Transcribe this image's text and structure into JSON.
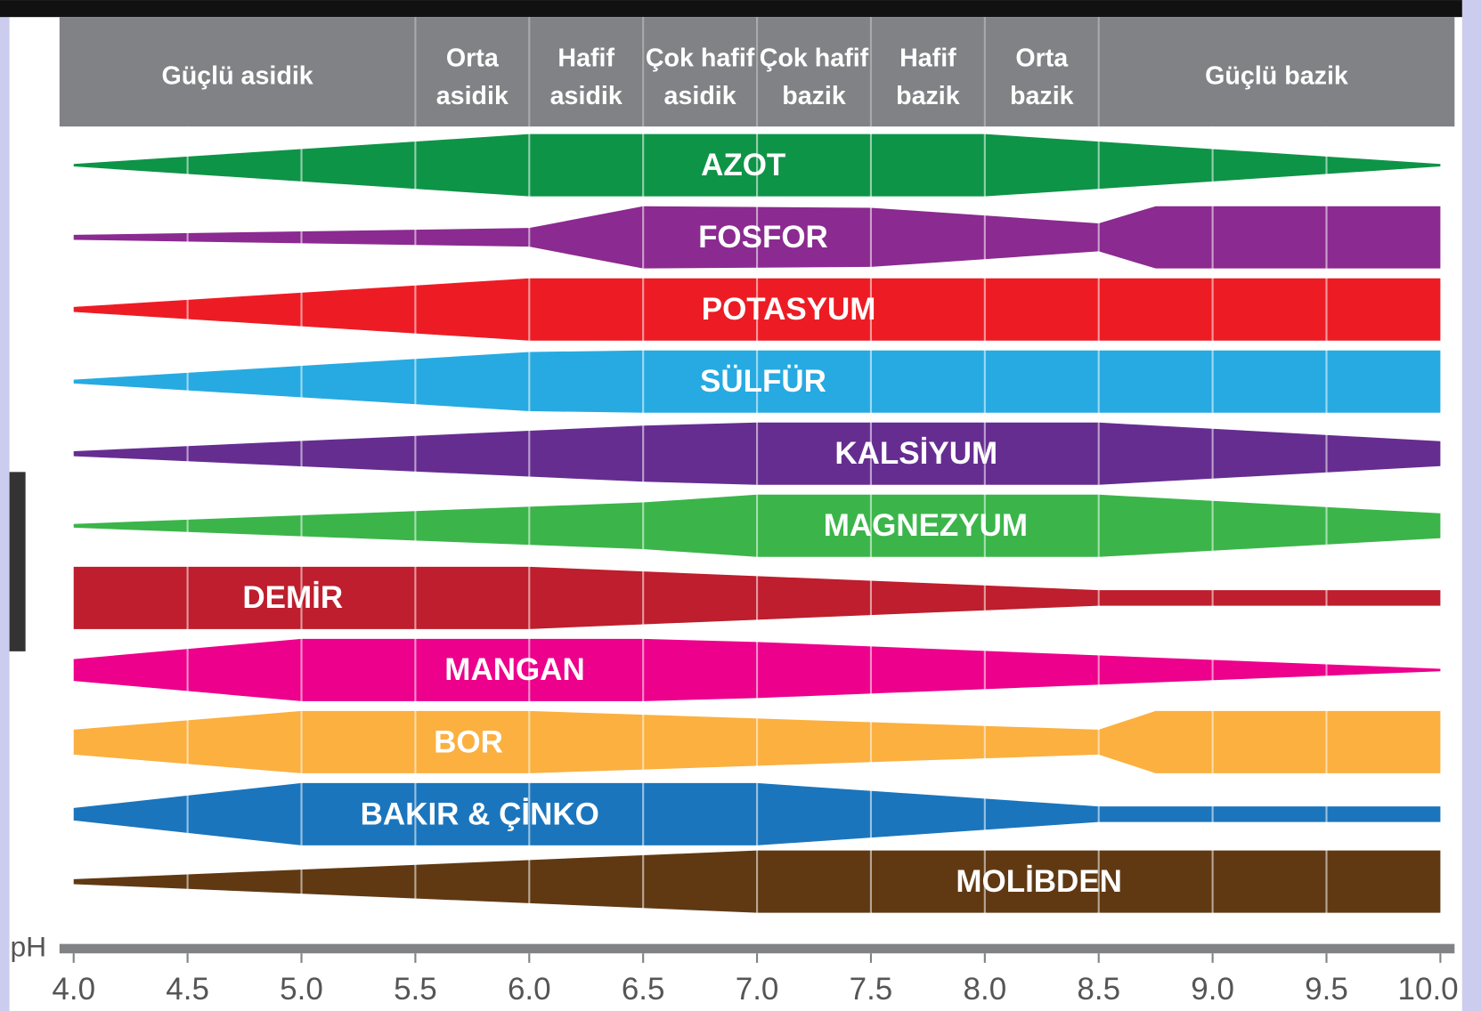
{
  "chart_data": {
    "type": "band",
    "header": [
      {
        "lines": [
          "Güçlü asidik"
        ],
        "range": [
          4.0,
          5.5
        ]
      },
      {
        "lines": [
          "Orta",
          "asidik"
        ],
        "range": [
          5.5,
          6.0
        ]
      },
      {
        "lines": [
          "Hafif",
          "asidik"
        ],
        "range": [
          6.0,
          6.5
        ]
      },
      {
        "lines": [
          "Çok hafif",
          "asidik"
        ],
        "range": [
          6.5,
          7.0
        ]
      },
      {
        "lines": [
          "Çok hafif",
          "bazik"
        ],
        "range": [
          7.0,
          7.5
        ]
      },
      {
        "lines": [
          "Hafif",
          "bazik"
        ],
        "range": [
          7.5,
          8.0
        ]
      },
      {
        "lines": [
          "Orta",
          "bazik"
        ],
        "range": [
          8.0,
          8.5
        ]
      },
      {
        "lines": [
          "Güçlü bazik"
        ],
        "range": [
          8.5,
          10.0
        ]
      }
    ],
    "xlabel": "pH",
    "xlim": [
      4.0,
      10.0
    ],
    "xticks": [
      {
        "value": 4.0,
        "label": "4.0"
      },
      4.5,
      {
        "value": 5.0,
        "label": "5.0"
      },
      5.5,
      {
        "value": 6.0,
        "label": "6.0"
      },
      6.5,
      {
        "value": 7.0,
        "label": "7.0"
      },
      7.5,
      {
        "value": 8.0,
        "label": "8.0"
      },
      8.5,
      {
        "value": 9.0,
        "label": "9.0"
      },
      9.5,
      {
        "value": 10.0,
        "label": "10.0"
      }
    ],
    "grid": true,
    "widthlim": [
      0,
      100
    ],
    "series": [
      {
        "name": "AZOT",
        "color": "#0e9447",
        "x": [
          4.0,
          6.0,
          8.0,
          10.0
        ],
        "values": [
          4,
          100,
          100,
          4
        ]
      },
      {
        "name": "FOSFOR",
        "color": "#8b2a90",
        "x": [
          4.0,
          6.0,
          6.5,
          7.5,
          8.5,
          8.75,
          10.0
        ],
        "values": [
          8,
          30,
          100,
          95,
          45,
          100,
          100
        ]
      },
      {
        "name": "POTASYUM",
        "color": "#ed1c24",
        "x": [
          4.0,
          6.0,
          10.0
        ],
        "values": [
          8,
          100,
          100
        ]
      },
      {
        "name": "SÜLFÜR",
        "color": "#27aae1",
        "x": [
          4.0,
          6.0,
          6.5,
          10.0
        ],
        "values": [
          6,
          95,
          100,
          100
        ]
      },
      {
        "name": "KALSİYUM",
        "color": "#662d91",
        "x": [
          4.0,
          6.5,
          7.0,
          8.5,
          10.0
        ],
        "values": [
          8,
          90,
          100,
          100,
          40
        ]
      },
      {
        "name": "MAGNEZYUM",
        "color": "#3bb54a",
        "x": [
          4.0,
          6.5,
          7.0,
          8.5,
          10.0
        ],
        "values": [
          6,
          75,
          100,
          100,
          40
        ]
      },
      {
        "name": "DEMİR",
        "color": "#be1e2d",
        "x": [
          4.0,
          6.0,
          8.5,
          10.0
        ],
        "values": [
          100,
          100,
          25,
          25
        ]
      },
      {
        "name": "MANGAN",
        "color": "#ec008c",
        "x": [
          4.0,
          5.0,
          6.5,
          7.0,
          10.0
        ],
        "values": [
          35,
          100,
          100,
          90,
          4
        ]
      },
      {
        "name": "BOR",
        "color": "#fbb040",
        "x": [
          4.0,
          5.0,
          6.0,
          8.5,
          8.75,
          10.0
        ],
        "values": [
          40,
          100,
          100,
          40,
          100,
          100
        ]
      },
      {
        "name": "BAKIR & ÇİNKO",
        "color": "#1b75bc",
        "x": [
          4.0,
          5.0,
          7.0,
          8.5,
          10.0
        ],
        "values": [
          20,
          100,
          100,
          25,
          25
        ]
      },
      {
        "name": "MOLİBDEN",
        "color": "#603913",
        "x": [
          4.0,
          7.0,
          10.0
        ],
        "values": [
          8,
          100,
          100
        ]
      }
    ]
  }
}
